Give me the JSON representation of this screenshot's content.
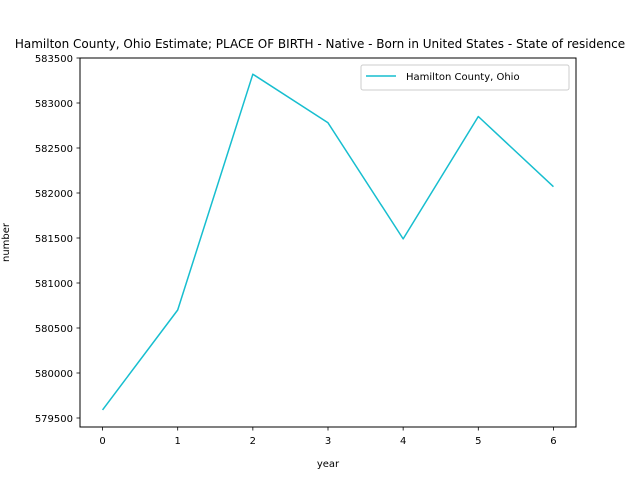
{
  "chart_data": {
    "type": "line",
    "title": "Hamilton County, Ohio Estimate; PLACE OF BIRTH - Native - Born in United States - State of residence",
    "xlabel": "year",
    "ylabel": "number",
    "x": [
      0,
      1,
      2,
      3,
      4,
      5,
      6
    ],
    "xticks": [
      "0",
      "1",
      "2",
      "3",
      "4",
      "5",
      "6"
    ],
    "yticks": [
      "579500",
      "580000",
      "580500",
      "581000",
      "581500",
      "582000",
      "582500",
      "583000",
      "583500"
    ],
    "xlim": [
      -0.3,
      6.3
    ],
    "ylim": [
      579400,
      583500
    ],
    "grid": false,
    "legend_position": "top-right",
    "series": [
      {
        "name": "Hamilton County, Ohio",
        "color": "#17becf",
        "values": [
          579590,
          580700,
          583320,
          582780,
          581490,
          582850,
          582070
        ]
      }
    ]
  }
}
